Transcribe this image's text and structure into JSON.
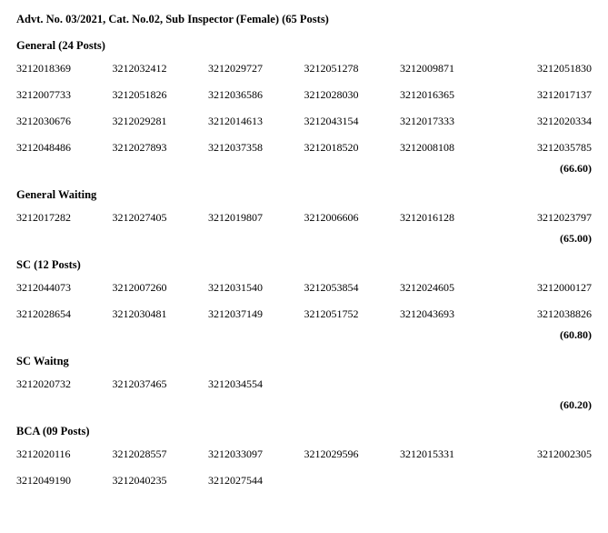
{
  "title": "Advt. No. 03/2021,  Cat. No.02, Sub Inspector (Female) (65 Posts)",
  "sections": [
    {
      "heading": "General (24 Posts)",
      "rows": [
        [
          "3212018369",
          "3212032412",
          "3212029727",
          "3212051278",
          "3212009871",
          "3212051830"
        ],
        [
          "3212007733",
          "3212051826",
          "3212036586",
          "3212028030",
          "3212016365",
          "3212017137"
        ],
        [
          "3212030676",
          "3212029281",
          "3212014613",
          "3212043154",
          "3212017333",
          "3212020334"
        ],
        [
          "3212048486",
          "3212027893",
          "3212037358",
          "3212018520",
          "3212008108",
          "3212035785"
        ]
      ],
      "cutoff": "(66.60)"
    },
    {
      "heading": "General Waiting",
      "rows": [
        [
          "3212017282",
          "3212027405",
          "3212019807",
          "3212006606",
          "3212016128",
          "3212023797"
        ]
      ],
      "cutoff": "(65.00)"
    },
    {
      "heading": "SC (12 Posts)",
      "rows": [
        [
          "3212044073",
          "3212007260",
          "3212031540",
          "3212053854",
          "3212024605",
          "3212000127"
        ],
        [
          "3212028654",
          "3212030481",
          "3212037149",
          "3212051752",
          "3212043693",
          "3212038826"
        ]
      ],
      "cutoff": "(60.80)"
    },
    {
      "heading": "SC Waitng",
      "rows": [
        [
          "3212020732",
          "3212037465",
          "3212034554",
          "",
          "",
          ""
        ]
      ],
      "cutoff": "(60.20)"
    },
    {
      "heading": "BCA (09 Posts)",
      "rows": [
        [
          "3212020116",
          "3212028557",
          "3212033097",
          "3212029596",
          "3212015331",
          "3212002305"
        ],
        [
          "3212049190",
          "3212040235",
          "3212027544",
          "",
          "",
          ""
        ]
      ],
      "cutoff": ""
    }
  ]
}
